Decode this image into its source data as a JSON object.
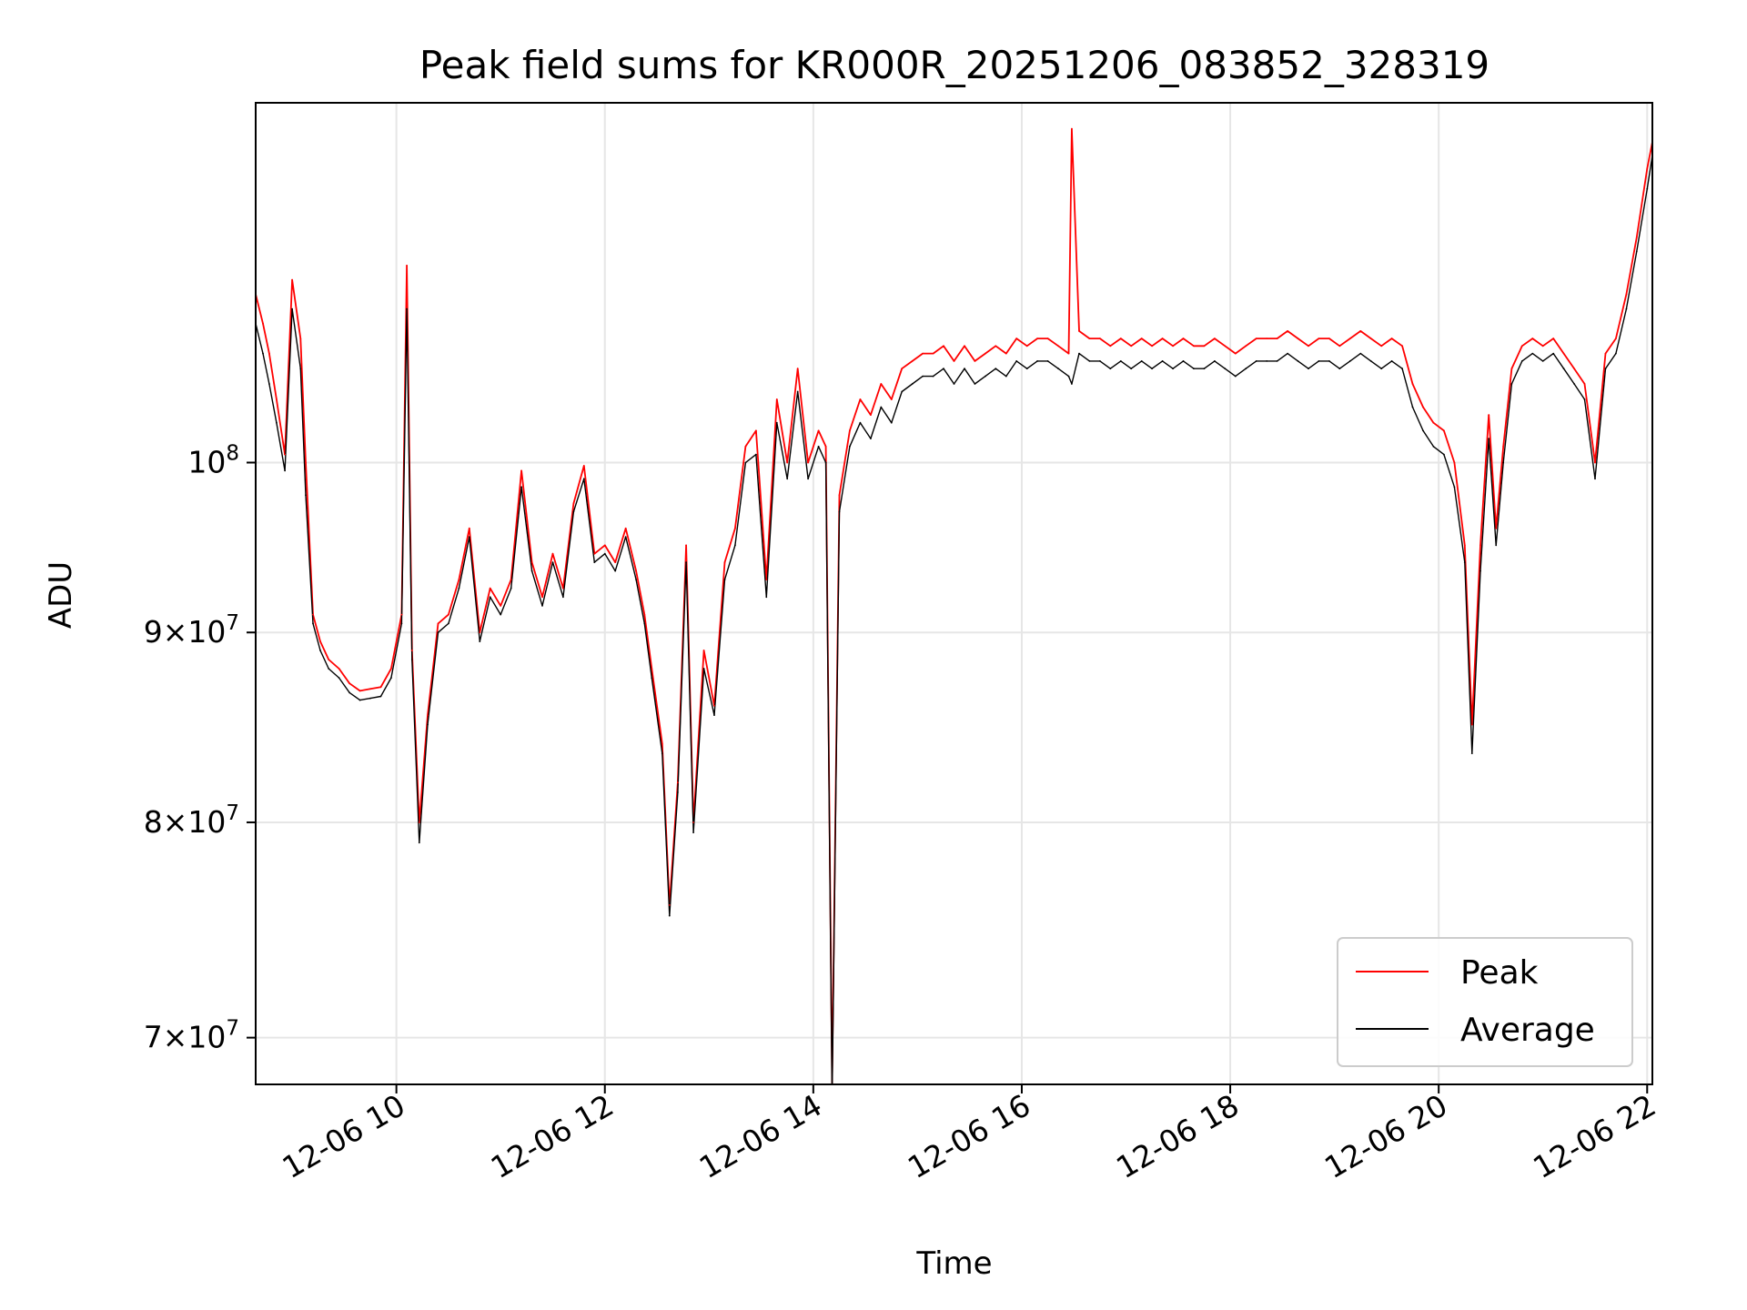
{
  "chart_data": {
    "type": "line",
    "title": "Peak field sums for KR000R_20251206_083852_328319",
    "xlabel": "Time",
    "ylabel": "ADU",
    "yscale": "log",
    "ylim": [
      68000000,
      125000000
    ],
    "x_range_hours": [
      8.65,
      22.05
    ],
    "grid": true,
    "legend_position": "lower-right",
    "x_ticks": [
      {
        "hour": 10,
        "label": "12-06 10"
      },
      {
        "hour": 12,
        "label": "12-06 12"
      },
      {
        "hour": 14,
        "label": "12-06 14"
      },
      {
        "hour": 16,
        "label": "12-06 16"
      },
      {
        "hour": 18,
        "label": "12-06 18"
      },
      {
        "hour": 20,
        "label": "12-06 20"
      },
      {
        "hour": 22,
        "label": "12-06 22"
      }
    ],
    "y_ticks": [
      {
        "value": 70000000,
        "mant": "7",
        "exp": "7"
      },
      {
        "value": 80000000,
        "mant": "8",
        "exp": "7"
      },
      {
        "value": 90000000,
        "mant": "9",
        "exp": "7"
      },
      {
        "value": 100000000,
        "mant": "",
        "exp": "8"
      }
    ],
    "series": [
      {
        "name": "Peak",
        "color": "#ff0000",
        "x": [
          8.65,
          8.72,
          8.78,
          8.85,
          8.93,
          9.0,
          9.08,
          9.13,
          9.2,
          9.27,
          9.35,
          9.45,
          9.55,
          9.65,
          9.75,
          9.85,
          9.95,
          10.05,
          10.1,
          10.15,
          10.22,
          10.3,
          10.4,
          10.5,
          10.6,
          10.7,
          10.8,
          10.9,
          11.0,
          11.1,
          11.2,
          11.3,
          11.4,
          11.5,
          11.6,
          11.7,
          11.8,
          11.9,
          12.0,
          12.1,
          12.2,
          12.3,
          12.38,
          12.45,
          12.55,
          12.62,
          12.7,
          12.78,
          12.85,
          12.95,
          13.05,
          13.15,
          13.25,
          13.35,
          13.45,
          13.55,
          13.65,
          13.75,
          13.85,
          13.95,
          14.05,
          14.12,
          14.18,
          14.25,
          14.35,
          14.45,
          14.55,
          14.65,
          14.75,
          14.85,
          14.95,
          15.05,
          15.15,
          15.25,
          15.35,
          15.45,
          15.55,
          15.65,
          15.75,
          15.85,
          15.95,
          16.05,
          16.15,
          16.25,
          16.35,
          16.45,
          16.48,
          16.55,
          16.65,
          16.75,
          16.85,
          16.95,
          17.05,
          17.15,
          17.25,
          17.35,
          17.45,
          17.55,
          17.65,
          17.75,
          17.85,
          17.95,
          18.05,
          18.15,
          18.25,
          18.35,
          18.45,
          18.55,
          18.65,
          18.75,
          18.85,
          18.95,
          19.05,
          19.15,
          19.25,
          19.35,
          19.45,
          19.55,
          19.65,
          19.75,
          19.85,
          19.95,
          20.05,
          20.15,
          20.25,
          20.32,
          20.4,
          20.48,
          20.55,
          20.62,
          20.7,
          20.8,
          20.9,
          21.0,
          21.1,
          21.2,
          21.3,
          21.4,
          21.5,
          21.6,
          21.7,
          21.8,
          21.9,
          22.0,
          22.05
        ],
        "values": [
          111000000,
          109000000,
          107000000,
          104000000,
          100500000,
          112000000,
          108000000,
          100000000,
          91000000,
          89500000,
          88500000,
          88000000,
          87200000,
          86800000,
          86900000,
          87000000,
          88000000,
          91000000,
          113000000,
          89000000,
          80000000,
          85500000,
          90500000,
          91000000,
          93000000,
          96000000,
          90000000,
          92500000,
          91500000,
          93000000,
          99500000,
          94000000,
          92000000,
          94500000,
          92500000,
          97500000,
          99800000,
          94500000,
          95000000,
          94000000,
          96000000,
          93500000,
          91000000,
          88000000,
          84000000,
          76000000,
          82000000,
          95000000,
          80000000,
          89000000,
          86000000,
          94000000,
          96000000,
          101000000,
          102000000,
          93000000,
          104000000,
          100000000,
          106000000,
          100000000,
          102000000,
          101000000,
          68000000,
          98000000,
          102000000,
          104000000,
          103000000,
          105000000,
          104000000,
          106000000,
          106500000,
          107000000,
          107000000,
          107500000,
          106500000,
          107500000,
          106500000,
          107000000,
          107500000,
          107000000,
          108000000,
          107500000,
          108000000,
          108000000,
          107500000,
          107000000,
          123000000,
          108500000,
          108000000,
          108000000,
          107500000,
          108000000,
          107500000,
          108000000,
          107500000,
          108000000,
          107500000,
          108000000,
          107500000,
          107500000,
          108000000,
          107500000,
          107000000,
          107500000,
          108000000,
          108000000,
          108000000,
          108500000,
          108000000,
          107500000,
          108000000,
          108000000,
          107500000,
          108000000,
          108500000,
          108000000,
          107500000,
          108000000,
          107500000,
          105000000,
          103500000,
          102500000,
          102000000,
          100000000,
          95000000,
          85000000,
          95000000,
          103000000,
          96000000,
          101000000,
          106000000,
          107500000,
          108000000,
          107500000,
          108000000,
          107000000,
          106000000,
          105000000,
          100000000,
          107000000,
          108000000,
          111000000,
          115000000,
          120000000,
          122000000
        ]
      },
      {
        "name": "Average",
        "color": "#000000",
        "x": [
          8.65,
          8.72,
          8.78,
          8.85,
          8.93,
          9.0,
          9.08,
          9.13,
          9.2,
          9.27,
          9.35,
          9.45,
          9.55,
          9.65,
          9.75,
          9.85,
          9.95,
          10.05,
          10.1,
          10.15,
          10.22,
          10.3,
          10.4,
          10.5,
          10.6,
          10.7,
          10.8,
          10.9,
          11.0,
          11.1,
          11.2,
          11.3,
          11.4,
          11.5,
          11.6,
          11.7,
          11.8,
          11.9,
          12.0,
          12.1,
          12.2,
          12.3,
          12.38,
          12.45,
          12.55,
          12.62,
          12.7,
          12.78,
          12.85,
          12.95,
          13.05,
          13.15,
          13.25,
          13.35,
          13.45,
          13.55,
          13.65,
          13.75,
          13.85,
          13.95,
          14.05,
          14.12,
          14.18,
          14.25,
          14.35,
          14.45,
          14.55,
          14.65,
          14.75,
          14.85,
          14.95,
          15.05,
          15.15,
          15.25,
          15.35,
          15.45,
          15.55,
          15.65,
          15.75,
          15.85,
          15.95,
          16.05,
          16.15,
          16.25,
          16.35,
          16.45,
          16.48,
          16.55,
          16.65,
          16.75,
          16.85,
          16.95,
          17.05,
          17.15,
          17.25,
          17.35,
          17.45,
          17.55,
          17.65,
          17.75,
          17.85,
          17.95,
          18.05,
          18.15,
          18.25,
          18.35,
          18.45,
          18.55,
          18.65,
          18.75,
          18.85,
          18.95,
          19.05,
          19.15,
          19.25,
          19.35,
          19.45,
          19.55,
          19.65,
          19.75,
          19.85,
          19.95,
          20.05,
          20.15,
          20.25,
          20.32,
          20.4,
          20.48,
          20.55,
          20.62,
          20.7,
          20.8,
          20.9,
          21.0,
          21.1,
          21.2,
          21.3,
          21.4,
          21.5,
          21.6,
          21.7,
          21.8,
          21.9,
          22.0,
          22.05
        ],
        "values": [
          109000000,
          107000000,
          105000000,
          102500000,
          99500000,
          110000000,
          106000000,
          98000000,
          90500000,
          89000000,
          88000000,
          87500000,
          86700000,
          86300000,
          86400000,
          86500000,
          87500000,
          90500000,
          110000000,
          88500000,
          79000000,
          85000000,
          90000000,
          90500000,
          92500000,
          95500000,
          89500000,
          92000000,
          91000000,
          92500000,
          98500000,
          93500000,
          91500000,
          94000000,
          92000000,
          97000000,
          99000000,
          94000000,
          94500000,
          93500000,
          95500000,
          93000000,
          90500000,
          87500000,
          83500000,
          75500000,
          81500000,
          94000000,
          79500000,
          88000000,
          85500000,
          93000000,
          95000000,
          100000000,
          100500000,
          92000000,
          102500000,
          99000000,
          104500000,
          99000000,
          101000000,
          100000000,
          67500000,
          97000000,
          101000000,
          102500000,
          101500000,
          103500000,
          102500000,
          104500000,
          105000000,
          105500000,
          105500000,
          106000000,
          105000000,
          106000000,
          105000000,
          105500000,
          106000000,
          105500000,
          106500000,
          106000000,
          106500000,
          106500000,
          106000000,
          105500000,
          105000000,
          107000000,
          106500000,
          106500000,
          106000000,
          106500000,
          106000000,
          106500000,
          106000000,
          106500000,
          106000000,
          106500000,
          106000000,
          106000000,
          106500000,
          106000000,
          105500000,
          106000000,
          106500000,
          106500000,
          106500000,
          107000000,
          106500000,
          106000000,
          106500000,
          106500000,
          106000000,
          106500000,
          107000000,
          106500000,
          106000000,
          106500000,
          106000000,
          103500000,
          102000000,
          101000000,
          100500000,
          98500000,
          94000000,
          83500000,
          93500000,
          101500000,
          95000000,
          100000000,
          105000000,
          106500000,
          107000000,
          106500000,
          107000000,
          106000000,
          105000000,
          104000000,
          99000000,
          106000000,
          107000000,
          110000000,
          114000000,
          118500000,
          121000000
        ]
      }
    ]
  }
}
